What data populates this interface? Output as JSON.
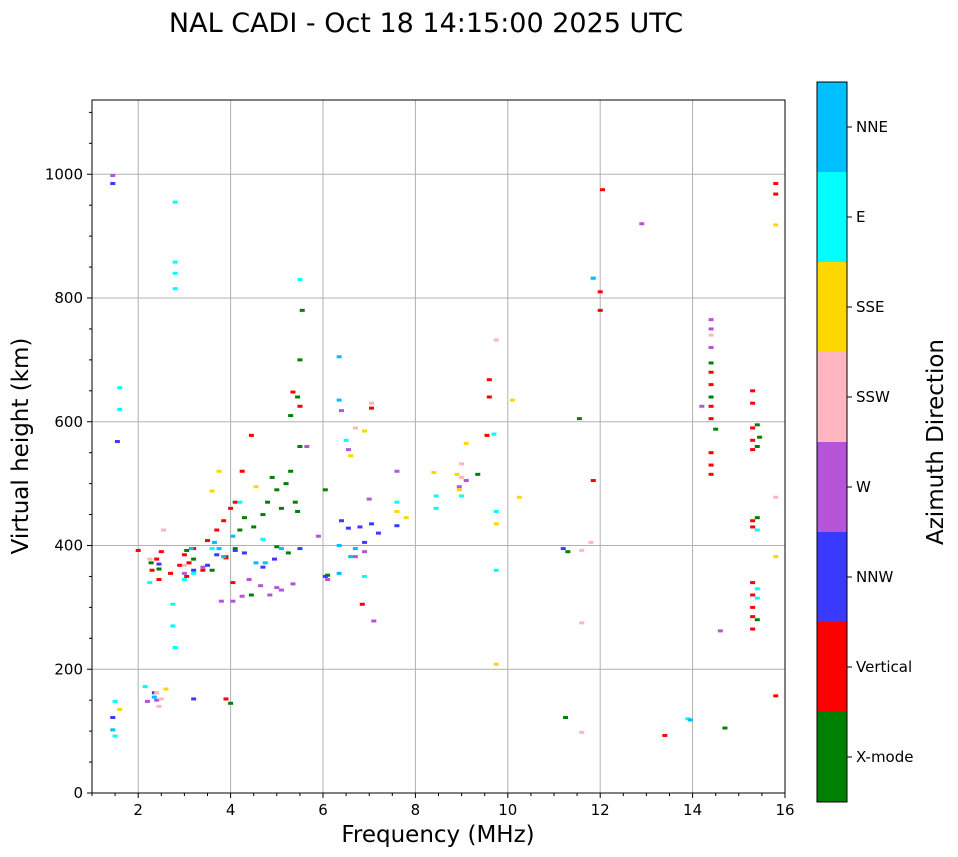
{
  "chart_data": {
    "type": "scatter",
    "title": "NAL CADI - Oct 18 14:15:00 2025 UTC",
    "xlabel": "Frequency (MHz)",
    "ylabel": "Virtual height (km)",
    "xlim": [
      1,
      16
    ],
    "ylim": [
      0,
      1120
    ],
    "xticks": [
      2,
      4,
      6,
      8,
      10,
      12,
      14,
      16
    ],
    "yticks": [
      0,
      200,
      400,
      600,
      800,
      1000
    ],
    "grid": true,
    "colorbar": {
      "label": "Azimuth Direction",
      "categories": [
        {
          "name": "X-mode",
          "color": "#008000"
        },
        {
          "name": "Vertical",
          "color": "#ff0000"
        },
        {
          "name": "NNW",
          "color": "#3a3aff"
        },
        {
          "name": "W",
          "color": "#b654d8"
        },
        {
          "name": "SSW",
          "color": "#ffb6c1"
        },
        {
          "name": "SSE",
          "color": "#ffd700"
        },
        {
          "name": "E",
          "color": "#00ffff"
        },
        {
          "name": "NNE",
          "color": "#00bfff"
        }
      ]
    },
    "series": [
      {
        "name": "X-mode",
        "points": [
          [
            2.28,
            372
          ],
          [
            2.45,
            362
          ],
          [
            3.05,
            392
          ],
          [
            3.2,
            378
          ],
          [
            3.6,
            360
          ],
          [
            3.9,
            382
          ],
          [
            4.1,
            395
          ],
          [
            4.2,
            425
          ],
          [
            4.3,
            445
          ],
          [
            4.5,
            430
          ],
          [
            4.7,
            450
          ],
          [
            4.8,
            470
          ],
          [
            4.9,
            510
          ],
          [
            5.0,
            490
          ],
          [
            5.1,
            460
          ],
          [
            5.2,
            500
          ],
          [
            5.3,
            520
          ],
          [
            5.4,
            470
          ],
          [
            5.45,
            455
          ],
          [
            5.5,
            560
          ],
          [
            5.3,
            610
          ],
          [
            5.45,
            640
          ],
          [
            5.5,
            700
          ],
          [
            5.55,
            780
          ],
          [
            5.0,
            398
          ],
          [
            5.25,
            388
          ],
          [
            6.05,
            490
          ],
          [
            6.1,
            352
          ],
          [
            9.35,
            515
          ],
          [
            11.3,
            390
          ],
          [
            11.25,
            122
          ],
          [
            11.55,
            605
          ],
          [
            14.4,
            695
          ],
          [
            14.4,
            640
          ],
          [
            14.5,
            588
          ],
          [
            14.7,
            105
          ],
          [
            15.4,
            595
          ],
          [
            15.45,
            575
          ],
          [
            15.4,
            560
          ],
          [
            15.4,
            445
          ],
          [
            15.4,
            280
          ],
          [
            4.45,
            320
          ],
          [
            4.0,
            145
          ]
        ]
      },
      {
        "name": "Vertical",
        "points": [
          [
            2.3,
            360
          ],
          [
            2.4,
            378
          ],
          [
            2.45,
            345
          ],
          [
            2.5,
            390
          ],
          [
            2.7,
            355
          ],
          [
            2.9,
            368
          ],
          [
            3.0,
            385
          ],
          [
            3.05,
            350
          ],
          [
            3.1,
            372
          ],
          [
            3.2,
            395
          ],
          [
            3.4,
            360
          ],
          [
            3.5,
            408
          ],
          [
            3.7,
            425
          ],
          [
            3.85,
            440
          ],
          [
            3.9,
            380
          ],
          [
            4.0,
            460
          ],
          [
            4.1,
            470
          ],
          [
            4.05,
            340
          ],
          [
            4.25,
            520
          ],
          [
            4.45,
            578
          ],
          [
            5.35,
            648
          ],
          [
            5.5,
            625
          ],
          [
            6.85,
            305
          ],
          [
            7.05,
            622
          ],
          [
            9.6,
            668
          ],
          [
            9.6,
            640
          ],
          [
            9.55,
            578
          ],
          [
            11.85,
            505
          ],
          [
            12.0,
            780
          ],
          [
            12.0,
            810
          ],
          [
            12.05,
            975
          ],
          [
            13.4,
            93
          ],
          [
            14.4,
            680
          ],
          [
            14.4,
            660
          ],
          [
            14.4,
            625
          ],
          [
            14.4,
            605
          ],
          [
            14.4,
            550
          ],
          [
            14.4,
            530
          ],
          [
            14.4,
            515
          ],
          [
            15.3,
            650
          ],
          [
            15.3,
            630
          ],
          [
            15.3,
            590
          ],
          [
            15.3,
            570
          ],
          [
            15.3,
            555
          ],
          [
            15.3,
            440
          ],
          [
            15.3,
            430
          ],
          [
            15.3,
            340
          ],
          [
            15.3,
            320
          ],
          [
            15.3,
            300
          ],
          [
            15.3,
            285
          ],
          [
            15.3,
            265
          ],
          [
            15.8,
            985
          ],
          [
            15.8,
            968
          ],
          [
            15.8,
            157
          ],
          [
            2.0,
            392
          ],
          [
            3.9,
            152
          ]
        ]
      },
      {
        "name": "NNW",
        "points": [
          [
            1.45,
            985
          ],
          [
            1.55,
            568
          ],
          [
            2.45,
            370
          ],
          [
            3.2,
            360
          ],
          [
            3.5,
            368
          ],
          [
            3.7,
            385
          ],
          [
            4.1,
            392
          ],
          [
            4.3,
            388
          ],
          [
            4.7,
            365
          ],
          [
            4.95,
            378
          ],
          [
            5.5,
            395
          ],
          [
            6.05,
            350
          ],
          [
            6.4,
            440
          ],
          [
            6.55,
            428
          ],
          [
            6.8,
            430
          ],
          [
            6.9,
            405
          ],
          [
            7.05,
            435
          ],
          [
            7.2,
            420
          ],
          [
            7.6,
            432
          ],
          [
            11.2,
            395
          ],
          [
            1.45,
            122
          ],
          [
            2.35,
            162
          ],
          [
            3.2,
            152
          ]
        ]
      },
      {
        "name": "W",
        "points": [
          [
            1.45,
            998
          ],
          [
            2.4,
            150
          ],
          [
            3.0,
            355
          ],
          [
            3.4,
            365
          ],
          [
            3.8,
            310
          ],
          [
            4.05,
            310
          ],
          [
            4.25,
            318
          ],
          [
            4.4,
            345
          ],
          [
            4.65,
            335
          ],
          [
            4.85,
            320
          ],
          [
            5.0,
            332
          ],
          [
            5.1,
            328
          ],
          [
            5.35,
            338
          ],
          [
            5.65,
            560
          ],
          [
            5.9,
            415
          ],
          [
            6.1,
            345
          ],
          [
            6.4,
            618
          ],
          [
            6.55,
            555
          ],
          [
            6.7,
            382
          ],
          [
            6.9,
            390
          ],
          [
            7.0,
            475
          ],
          [
            7.1,
            278
          ],
          [
            7.6,
            520
          ],
          [
            8.95,
            495
          ],
          [
            9.1,
            505
          ],
          [
            12.9,
            920
          ],
          [
            14.2,
            625
          ],
          [
            14.4,
            765
          ],
          [
            14.4,
            750
          ],
          [
            14.4,
            720
          ],
          [
            14.6,
            262
          ],
          [
            2.2,
            148
          ]
        ]
      },
      {
        "name": "SSW",
        "points": [
          [
            2.25,
            378
          ],
          [
            2.4,
            162
          ],
          [
            2.5,
            152
          ],
          [
            2.55,
            425
          ],
          [
            3.0,
            368
          ],
          [
            6.7,
            590
          ],
          [
            7.05,
            630
          ],
          [
            9.0,
            532
          ],
          [
            9.0,
            510
          ],
          [
            9.75,
            732
          ],
          [
            11.6,
            392
          ],
          [
            11.6,
            275
          ],
          [
            11.6,
            98
          ],
          [
            11.8,
            405
          ],
          [
            14.4,
            740
          ],
          [
            15.8,
            478
          ],
          [
            2.45,
            140
          ]
        ]
      },
      {
        "name": "SSE",
        "points": [
          [
            1.6,
            135
          ],
          [
            2.6,
            168
          ],
          [
            3.6,
            488
          ],
          [
            3.75,
            520
          ],
          [
            4.55,
            495
          ],
          [
            6.6,
            545
          ],
          [
            6.9,
            585
          ],
          [
            7.6,
            455
          ],
          [
            7.8,
            445
          ],
          [
            8.4,
            518
          ],
          [
            8.9,
            515
          ],
          [
            8.95,
            490
          ],
          [
            9.1,
            565
          ],
          [
            9.75,
            435
          ],
          [
            9.75,
            208
          ],
          [
            10.1,
            635
          ],
          [
            10.25,
            478
          ],
          [
            15.8,
            918
          ],
          [
            15.8,
            382
          ]
        ]
      },
      {
        "name": "E",
        "points": [
          [
            1.5,
            148
          ],
          [
            1.5,
            92
          ],
          [
            2.15,
            172
          ],
          [
            2.25,
            340
          ],
          [
            2.75,
            305
          ],
          [
            2.75,
            270
          ],
          [
            2.8,
            235
          ],
          [
            2.8,
            955
          ],
          [
            2.8,
            858
          ],
          [
            2.8,
            840
          ],
          [
            2.8,
            815
          ],
          [
            1.6,
            655
          ],
          [
            1.6,
            620
          ],
          [
            3.0,
            345
          ],
          [
            3.2,
            355
          ],
          [
            3.6,
            395
          ],
          [
            4.2,
            470
          ],
          [
            4.7,
            410
          ],
          [
            5.5,
            830
          ],
          [
            6.5,
            570
          ],
          [
            6.9,
            350
          ],
          [
            7.6,
            470
          ],
          [
            8.45,
            480
          ],
          [
            8.45,
            460
          ],
          [
            9.0,
            480
          ],
          [
            9.7,
            580
          ],
          [
            9.75,
            455
          ],
          [
            9.75,
            360
          ],
          [
            11.85,
            832
          ],
          [
            13.9,
            120
          ],
          [
            15.4,
            425
          ],
          [
            15.4,
            330
          ],
          [
            15.4,
            315
          ]
        ]
      },
      {
        "name": "NNE",
        "points": [
          [
            1.45,
            102
          ],
          [
            2.35,
            155
          ],
          [
            3.15,
            395
          ],
          [
            3.65,
            405
          ],
          [
            3.75,
            395
          ],
          [
            3.85,
            382
          ],
          [
            4.05,
            415
          ],
          [
            4.55,
            372
          ],
          [
            4.75,
            372
          ],
          [
            5.1,
            395
          ],
          [
            6.35,
            705
          ],
          [
            6.35,
            635
          ],
          [
            6.35,
            400
          ],
          [
            6.35,
            355
          ],
          [
            6.6,
            382
          ],
          [
            6.7,
            395
          ],
          [
            11.85,
            832
          ],
          [
            13.95,
            118
          ]
        ]
      }
    ]
  }
}
